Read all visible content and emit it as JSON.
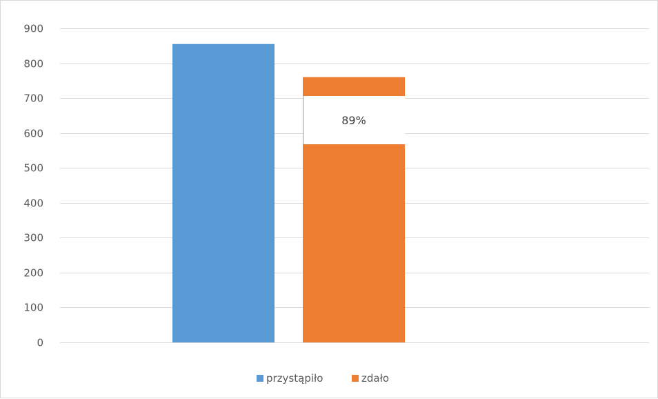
{
  "chart_data": {
    "type": "bar",
    "categories": [
      ""
    ],
    "series": [
      {
        "name": "przystąpiło",
        "values": [
          855
        ],
        "color": "#5b9bd5"
      },
      {
        "name": "zdało",
        "values": [
          760
        ],
        "color": "#ed7d31",
        "data_label": "89%"
      }
    ],
    "ylim": [
      0,
      900
    ],
    "yticks": [
      0,
      100,
      200,
      300,
      400,
      500,
      600,
      700,
      800,
      900
    ],
    "grid": true,
    "legend": "bottom",
    "title": "",
    "xlabel": "",
    "ylabel": ""
  }
}
